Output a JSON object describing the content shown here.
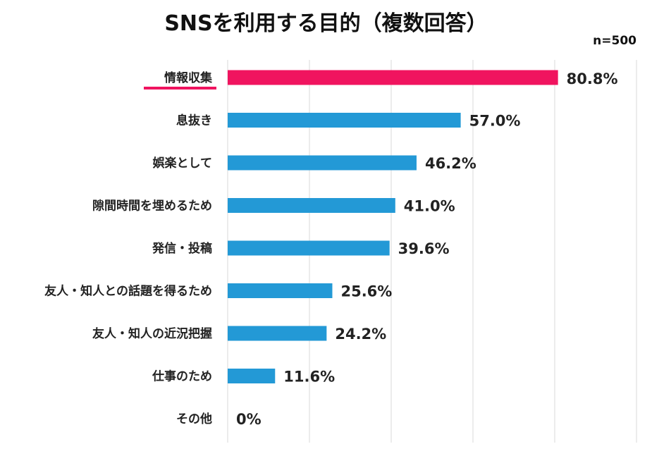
{
  "chart_data": {
    "type": "bar",
    "orientation": "horizontal",
    "title": "SNSを利用する目的（複数回答）",
    "sample_size": "n=500",
    "categories": [
      "情報収集",
      "息抜き",
      "娯楽として",
      "隙間時間を埋めるため",
      "発信・投稿",
      "友人・知人との話題を得るため",
      "友人・知人の近況把握",
      "仕事のため",
      "その他"
    ],
    "values": [
      80.8,
      57.0,
      46.2,
      41.0,
      39.6,
      25.6,
      24.2,
      11.6,
      0
    ],
    "value_labels": [
      "80.8%",
      "57.0%",
      "46.2%",
      "41.0%",
      "39.6%",
      "25.6%",
      "24.2%",
      "11.6%",
      "0%"
    ],
    "highlight_index": 0,
    "xlim": [
      0,
      100
    ],
    "grid": true,
    "colors": {
      "bar": "#2399D6",
      "highlight": "#F0145F",
      "grid": "#D9D9D9",
      "text": "#222222"
    }
  }
}
